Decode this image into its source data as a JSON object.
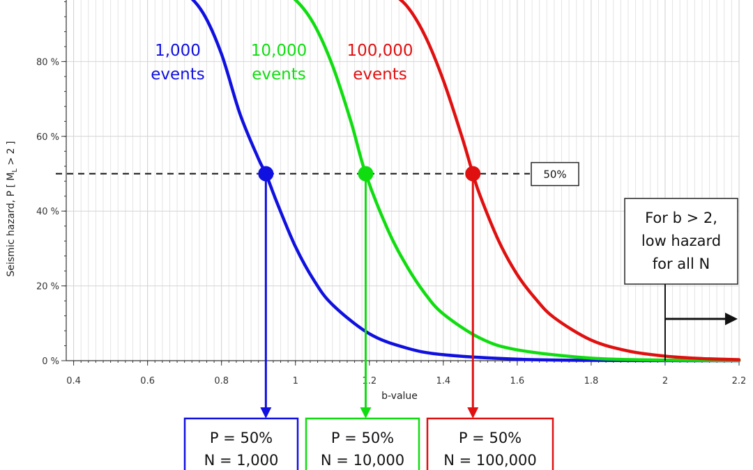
{
  "chart_data": {
    "type": "line",
    "xlabel": "b-value",
    "ylabel": "Seismic hazard, P [ M",
    "ylabel_sub": "L",
    "ylabel_tail": " > 2 ]",
    "xlim": [
      0.38,
      2.2
    ],
    "ylim": [
      0,
      100
    ],
    "x_ticks": [
      0.4,
      0.6,
      0.8,
      1.0,
      1.2,
      1.4,
      1.6,
      1.8,
      2.0,
      2.2
    ],
    "x_tick_labels": [
      "0.4",
      "0.6",
      "0.8",
      "1",
      "1.2",
      "1.4",
      "1.6",
      "1.8",
      "2",
      "2.2"
    ],
    "y_ticks": [
      0,
      20,
      40,
      60,
      80
    ],
    "y_tick_labels": [
      "0 %",
      "20 %",
      "40 %",
      "60 %",
      "80 %"
    ],
    "grid": true,
    "series": [
      {
        "name": "1,000 events",
        "label_top": "1,000",
        "label_bottom": "events",
        "color": "#1010e0",
        "N": 1000,
        "x": [
          0.6,
          0.65,
          0.7,
          0.75,
          0.8,
          0.85,
          0.9,
          0.92,
          0.95,
          1.0,
          1.05,
          1.1,
          1.2,
          1.3,
          1.4,
          1.6,
          1.8,
          2.0,
          2.2
        ],
        "y": [
          100,
          99.8,
          98.4,
          93,
          82,
          66,
          54,
          50,
          42.3,
          30.5,
          21.5,
          15,
          7.2,
          3.4,
          1.6,
          0.4,
          0.09,
          0.02,
          0.005
        ]
      },
      {
        "name": "10,000 events",
        "label_top": "10,000",
        "label_bottom": "events",
        "color": "#10dd10",
        "N": 10000,
        "x": [
          0.85,
          0.9,
          0.95,
          1.0,
          1.05,
          1.1,
          1.15,
          1.19,
          1.25,
          1.3,
          1.35,
          1.4,
          1.5,
          1.6,
          1.8,
          2.0,
          2.2
        ],
        "y": [
          100,
          99.9,
          99.2,
          96.5,
          90,
          79,
          64,
          50,
          35,
          25.5,
          18,
          12.5,
          6,
          2.9,
          0.68,
          0.16,
          0.04
        ]
      },
      {
        "name": "100,000 events",
        "label_top": "100,000",
        "label_bottom": "events",
        "color": "#e01010",
        "N": 100000,
        "x": [
          1.15,
          1.2,
          1.25,
          1.3,
          1.35,
          1.4,
          1.45,
          1.48,
          1.5,
          1.55,
          1.6,
          1.65,
          1.7,
          1.8,
          1.9,
          2.0,
          2.1,
          2.2
        ],
        "y": [
          100,
          99.8,
          98.6,
          95,
          87,
          75,
          60,
          50,
          44,
          32,
          23,
          16.5,
          11.5,
          5.5,
          2.6,
          1.22,
          0.57,
          0.27
        ]
      }
    ],
    "points": [
      {
        "x": 0.92,
        "y": 50
      },
      {
        "x": 1.19,
        "y": 50
      },
      {
        "x": 1.48,
        "y": 50
      }
    ],
    "hline_value": 50,
    "hline_label": "50%",
    "note_lines": [
      "For b > 2,",
      "low hazard",
      "for all N"
    ],
    "note_x": 2.0,
    "result_boxes": [
      {
        "line1": "P = 50%",
        "line2": "N = 1,000"
      },
      {
        "line1": "P = 50%",
        "line2": "N = 10,000"
      },
      {
        "line1": "P = 50%",
        "line2": "N = 100,000"
      }
    ]
  }
}
